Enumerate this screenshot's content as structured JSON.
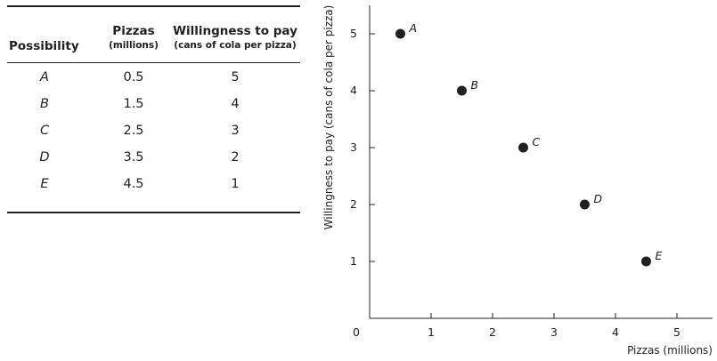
{
  "table": {
    "headers": {
      "possibility": "Possibility",
      "pizzas": "Pizzas",
      "pizzas_unit": "(millions)",
      "wtp": "Willingness to pay",
      "wtp_unit": "(cans of cola per pizza)"
    },
    "rows": [
      {
        "possibility": "A",
        "pizzas": "0.5",
        "wtp": "5"
      },
      {
        "possibility": "B",
        "pizzas": "1.5",
        "wtp": "4"
      },
      {
        "possibility": "C",
        "pizzas": "2.5",
        "wtp": "3"
      },
      {
        "possibility": "D",
        "pizzas": "3.5",
        "wtp": "2"
      },
      {
        "possibility": "E",
        "pizzas": "4.5",
        "wtp": "1"
      }
    ]
  },
  "chart_data": {
    "type": "scatter",
    "title": "",
    "xlabel": "Pizzas (millions)",
    "ylabel": "Willingness to pay (cans of cola per pizza)",
    "xlim": [
      0,
      5.6
    ],
    "ylim": [
      0,
      5.5
    ],
    "xticks": [
      0,
      1,
      2,
      3,
      4,
      5
    ],
    "yticks": [
      1,
      2,
      3,
      4,
      5
    ],
    "grid": false,
    "points": [
      {
        "label": "A",
        "x": 0.5,
        "y": 5
      },
      {
        "label": "B",
        "x": 1.5,
        "y": 4
      },
      {
        "label": "C",
        "x": 2.5,
        "y": 3
      },
      {
        "label": "D",
        "x": 3.5,
        "y": 2
      },
      {
        "label": "E",
        "x": 4.5,
        "y": 1
      }
    ],
    "point_color": "#231f20"
  }
}
